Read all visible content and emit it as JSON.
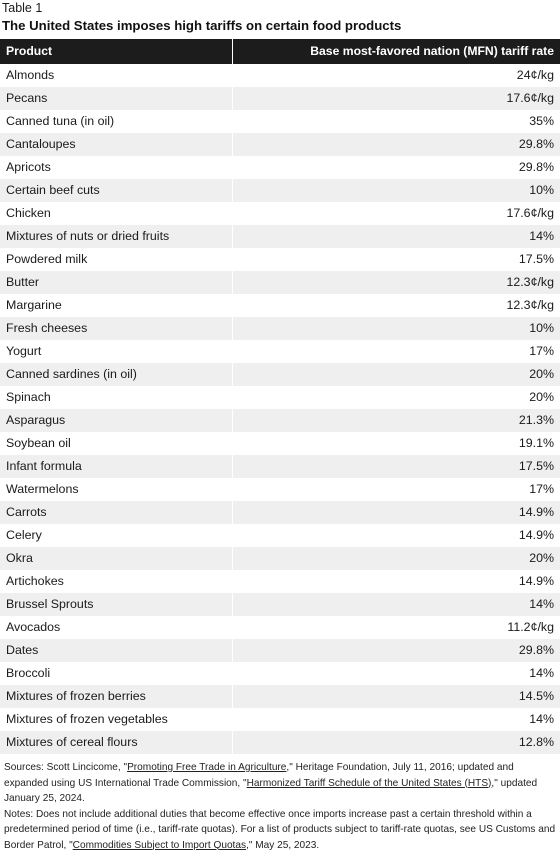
{
  "table_label": "Table 1",
  "title": "The United States imposes high tariffs on certain food products",
  "headers": {
    "product": "Product",
    "rate": "Base most-favored nation (MFN) tariff rate"
  },
  "rows": [
    {
      "product": "Almonds",
      "rate": "24¢/kg"
    },
    {
      "product": "Pecans",
      "rate": "17.6¢/kg"
    },
    {
      "product": "Canned tuna (in oil)",
      "rate": "35%"
    },
    {
      "product": "Cantaloupes",
      "rate": "29.8%"
    },
    {
      "product": "Apricots",
      "rate": "29.8%"
    },
    {
      "product": "Certain beef cuts",
      "rate": "10%"
    },
    {
      "product": "Chicken",
      "rate": "17.6¢/kg"
    },
    {
      "product": "Mixtures of nuts or dried fruits",
      "rate": "14%"
    },
    {
      "product": "Powdered milk",
      "rate": "17.5%"
    },
    {
      "product": "Butter",
      "rate": "12.3¢/kg"
    },
    {
      "product": "Margarine",
      "rate": "12.3¢/kg"
    },
    {
      "product": "Fresh cheeses",
      "rate": "10%"
    },
    {
      "product": "Yogurt",
      "rate": "17%"
    },
    {
      "product": "Canned sardines (in oil)",
      "rate": "20%"
    },
    {
      "product": "Spinach",
      "rate": "20%"
    },
    {
      "product": "Asparagus",
      "rate": "21.3%"
    },
    {
      "product": "Soybean oil",
      "rate": "19.1%"
    },
    {
      "product": "Infant formula",
      "rate": "17.5%"
    },
    {
      "product": "Watermelons",
      "rate": "17%"
    },
    {
      "product": "Carrots",
      "rate": "14.9%"
    },
    {
      "product": "Celery",
      "rate": "14.9%"
    },
    {
      "product": "Okra",
      "rate": "20%"
    },
    {
      "product": "Artichokes",
      "rate": "14.9%"
    },
    {
      "product": "Brussel Sprouts",
      "rate": "14%"
    },
    {
      "product": "Avocados",
      "rate": "11.2¢/kg"
    },
    {
      "product": "Dates",
      "rate": "29.8%"
    },
    {
      "product": "Broccoli",
      "rate": "14%"
    },
    {
      "product": "Mixtures of frozen berries",
      "rate": "14.5%"
    },
    {
      "product": "Mixtures of frozen vegetables",
      "rate": "14%"
    },
    {
      "product": "Mixtures of cereal flours",
      "rate": "12.8%"
    }
  ],
  "sources": {
    "prefix": "Sources: Scott Lincicome, \"",
    "link1": "Promoting Free Trade in Agriculture",
    "middle": ",\" Heritage Foundation, July 11, 2016; updated and expanded using US International Trade Commission, \"",
    "link2": "Harmonized Tariff Schedule of the United States (HTS)",
    "suffix": ",\" updated January 25, 2024."
  },
  "notes": {
    "prefix": "Notes: Does not include additional duties that become effective once imports increase past a certain threshold within a predetermined period of time (i.e., tariff-rate quotas). For a list of products subject to tariff-rate quotas, see US Customs and Border Patrol, \"",
    "link": "Commodities Subject to Import Quotas",
    "suffix": ",\" May 25, 2023."
  }
}
